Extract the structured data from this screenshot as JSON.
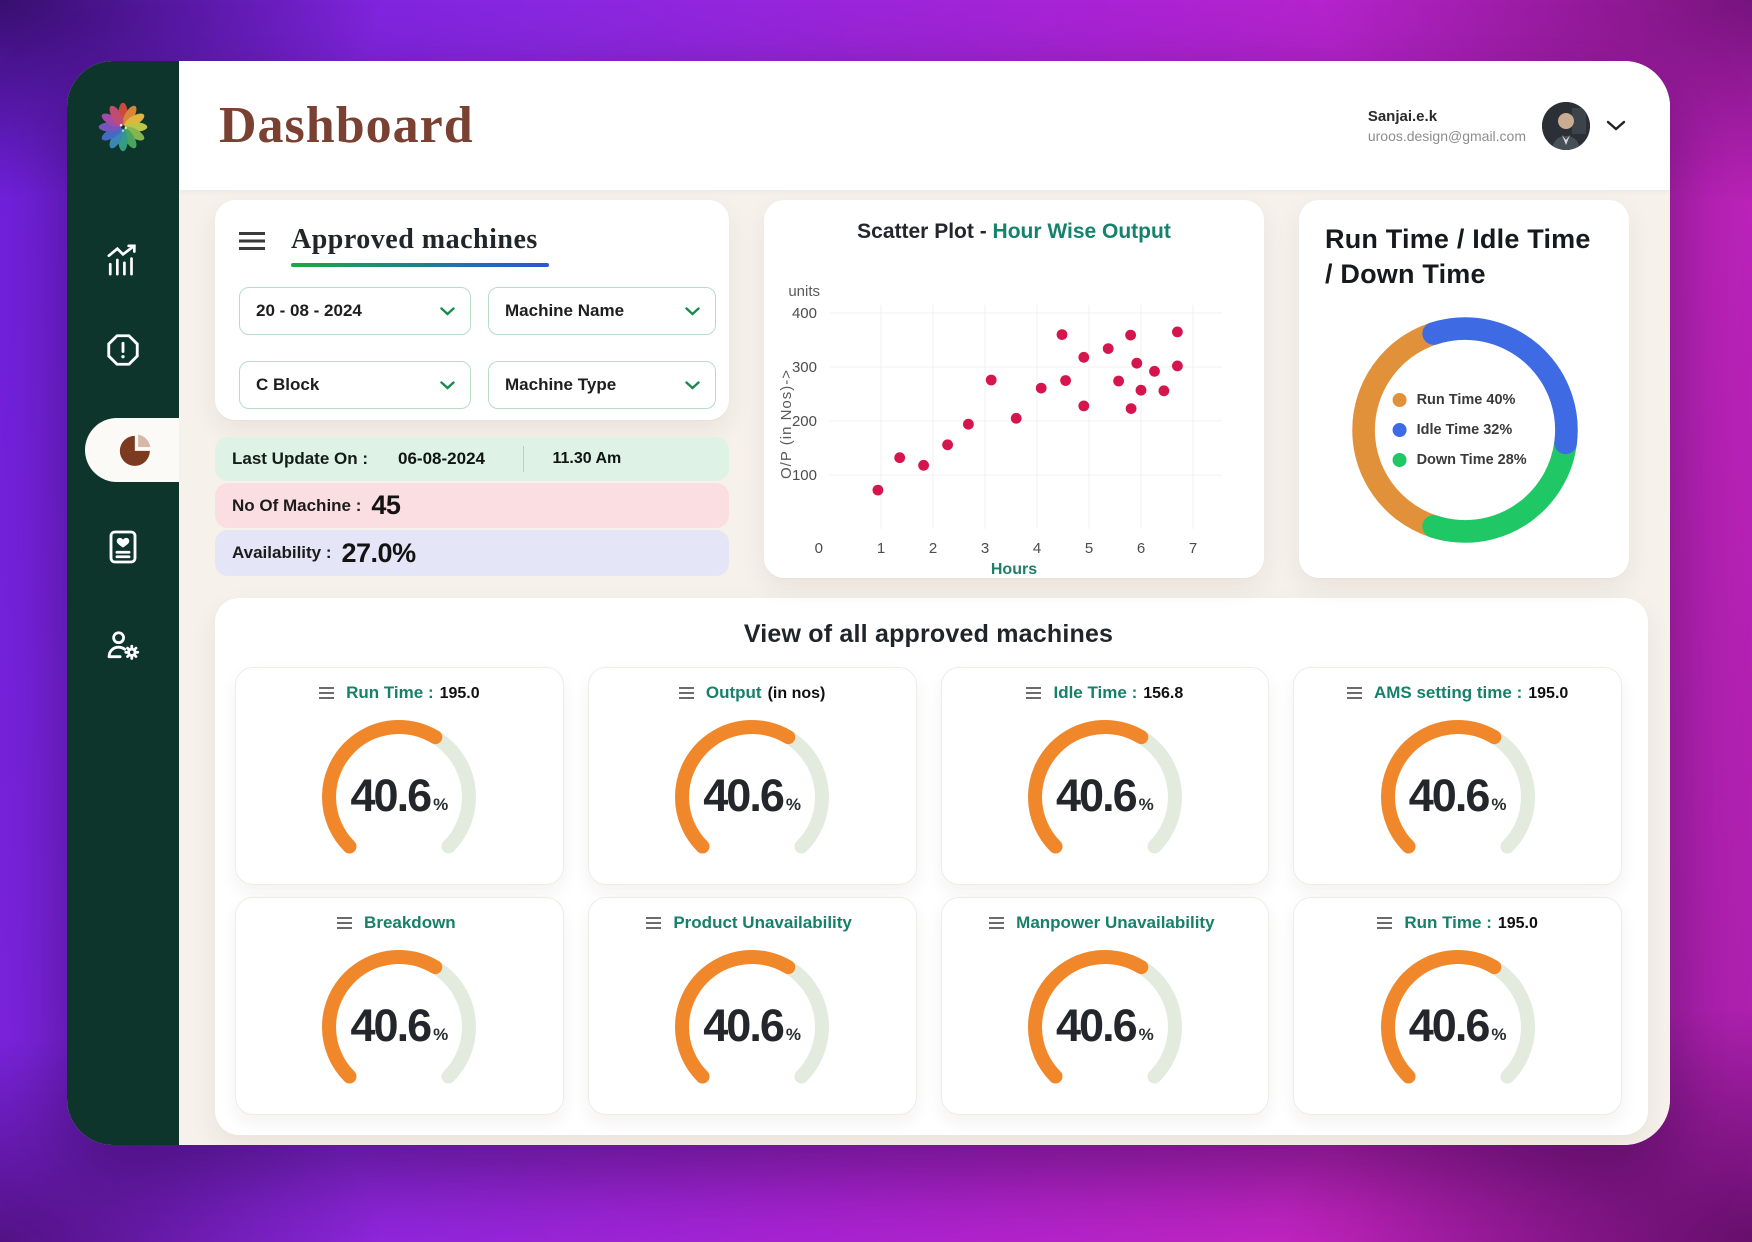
{
  "header": {
    "title": "Dashboard"
  },
  "user": {
    "name": "Sanjai.e.k",
    "email": "uroos.design@gmail.com"
  },
  "sidebar": {
    "items": [
      {
        "name": "analytics"
      },
      {
        "name": "alerts"
      },
      {
        "name": "pie-dashboard",
        "active": true
      },
      {
        "name": "reports"
      },
      {
        "name": "user-settings"
      }
    ]
  },
  "filters": {
    "title": "Approved machines",
    "date": "20 - 08 - 2024",
    "machine_name": "Machine Name",
    "block": "C Block",
    "machine_type": "Machine Type"
  },
  "status": {
    "last_update_label": "Last Update On :",
    "last_update_date": "06-08-2024",
    "last_update_time": "11.30 Am",
    "machines_label": "No Of Machine :",
    "machines_value": "45",
    "availability_label": "Availability :",
    "availability_value": "27.0%"
  },
  "scatter_header": {
    "title_dark": "Scatter Plot -",
    "title_accent": "Hour Wise Output"
  },
  "donut_header": {
    "title": "Run Time  /  Idle Time  /  Down Time"
  },
  "machines_panel": {
    "title": "View of all approved machines",
    "unit": "%",
    "cards": [
      {
        "label": "Run Time :",
        "suffix": "195.0",
        "percent": "40.6"
      },
      {
        "label": "Output",
        "suffix": "(in nos)",
        "percent": "40.6"
      },
      {
        "label": "Idle Time :",
        "suffix": "156.8",
        "percent": "40.6"
      },
      {
        "label": "AMS setting time :",
        "suffix": "195.0",
        "percent": "40.6"
      },
      {
        "label": "Breakdown",
        "suffix": "",
        "percent": "40.6"
      },
      {
        "label": "Product  Unavailability",
        "suffix": "",
        "percent": "40.6"
      },
      {
        "label": "Manpower  Unavailability",
        "suffix": "",
        "percent": "40.6"
      },
      {
        "label": "Run Time :",
        "suffix": "195.0",
        "percent": "40.6"
      }
    ]
  },
  "chart_data": [
    {
      "type": "scatter",
      "title": "Scatter Plot - Hour Wise Output",
      "xlabel": "Hours",
      "ylabel": "O/P (in Nos)->",
      "units_label": "units",
      "xlim": [
        0,
        7.5
      ],
      "ylim": [
        0,
        400
      ],
      "xticks": [
        0,
        1,
        2,
        3,
        4,
        5,
        6,
        7
      ],
      "yticks": [
        100,
        200,
        300,
        400
      ],
      "point_color": "#d5164e",
      "grid": true,
      "points": [
        [
          0.94,
          72
        ],
        [
          1.36,
          132
        ],
        [
          1.82,
          118
        ],
        [
          2.28,
          156
        ],
        [
          2.68,
          194
        ],
        [
          3.12,
          276
        ],
        [
          3.6,
          205
        ],
        [
          4.08,
          261
        ],
        [
          4.48,
          360
        ],
        [
          4.55,
          275
        ],
        [
          4.9,
          318
        ],
        [
          4.9,
          228
        ],
        [
          5.37,
          334
        ],
        [
          5.57,
          274
        ],
        [
          5.8,
          359
        ],
        [
          5.81,
          223
        ],
        [
          5.92,
          307
        ],
        [
          6.0,
          257
        ],
        [
          6.26,
          292
        ],
        [
          6.44,
          256
        ],
        [
          6.7,
          365
        ],
        [
          6.7,
          302
        ]
      ]
    },
    {
      "type": "pie",
      "donut": true,
      "title": "Run Time / Idle Time / Down Time",
      "start_angle_deg": 108,
      "legend_position": "center",
      "slices": [
        {
          "label": "Run Time",
          "value": 40,
          "legend": "Run Time 40%",
          "color": "#e2913b"
        },
        {
          "label": "Idle Time",
          "value": 32,
          "legend": "Idle Time 32%",
          "color": "#3e6be4"
        },
        {
          "label": "Down Time",
          "value": 28,
          "legend": "Down Time 28%",
          "color": "#1fc765"
        }
      ]
    },
    {
      "type": "gauge",
      "percent": 40.6,
      "sweep_deg": 270,
      "displayed_fraction": 0.615,
      "color": "#f0882b",
      "track_color": "#e2ebde",
      "cards": [
        "Run Time : 195.0",
        "Output (in nos)",
        "Idle Time : 156.8",
        "AMS setting time : 195.0",
        "Breakdown",
        "Product Unavailability",
        "Manpower Unavailability",
        "Run Time : 195.0"
      ]
    }
  ]
}
